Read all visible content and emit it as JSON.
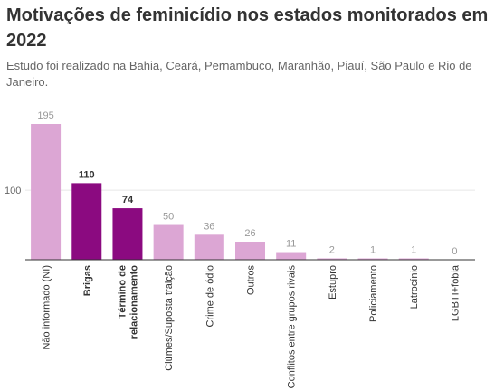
{
  "chart_data": {
    "type": "bar",
    "title": "Motivações de feminicídio nos estados monitorados em 2022",
    "subtitle": "Estudo foi realizado na Bahia, Ceará, Pernambuco, Maranhão, Piauí, São Paulo e Rio de Janeiro.",
    "categories": [
      [
        "Não informado (NI)"
      ],
      [
        "Brigas"
      ],
      [
        "Término de",
        "relacionamento"
      ],
      [
        "Ciúmes/Suposta traição"
      ],
      [
        "Crime de ódio"
      ],
      [
        "Outros"
      ],
      [
        "Conflitos entre grupos rivais"
      ],
      [
        "Estupro"
      ],
      [
        "Policiamento"
      ],
      [
        "Latrocínio"
      ],
      [
        "LGBTI+fobia"
      ]
    ],
    "values": [
      195,
      110,
      74,
      50,
      36,
      26,
      11,
      2,
      1,
      1,
      0
    ],
    "highlighted": [
      false,
      true,
      true,
      false,
      false,
      false,
      false,
      false,
      false,
      false,
      false
    ],
    "yticks": [
      100
    ],
    "ylim": [
      0,
      195
    ],
    "colors": {
      "base": "#dca6d4",
      "highlight": "#8b0a80",
      "grid": "#e6e6e6",
      "axis": "#333333"
    }
  }
}
